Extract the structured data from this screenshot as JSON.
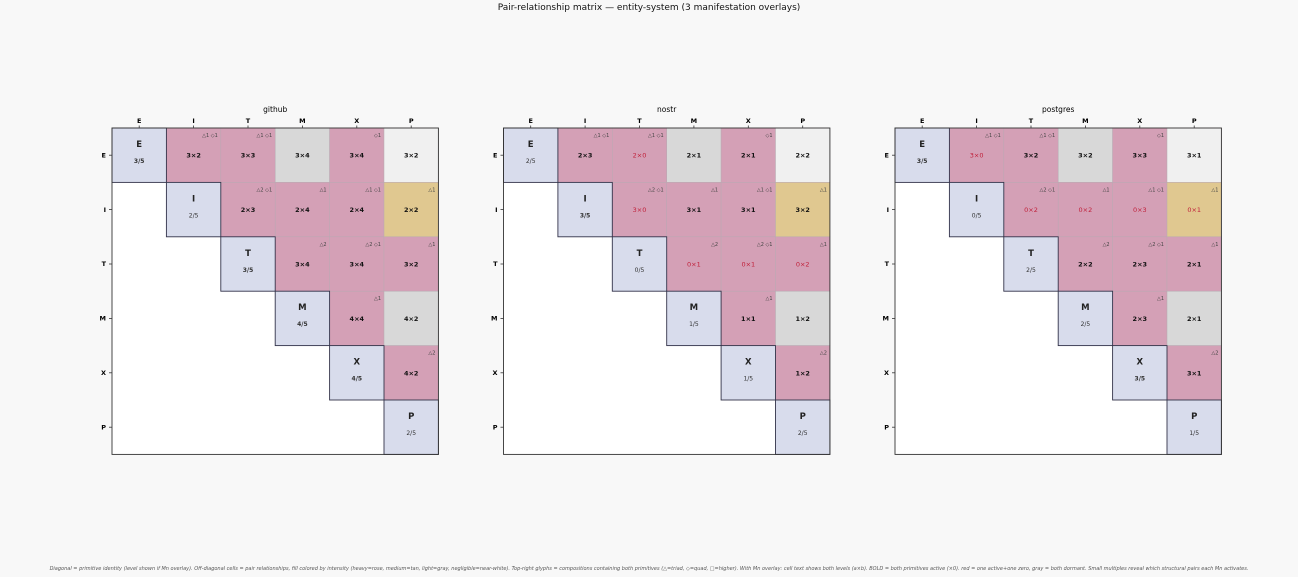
{
  "title": "Pair-relationship matrix — entity-system  (3 manifestation overlays)",
  "caption": "Diagonal = primitive identity (level shown if Mn overlay). Off-diagonal cells = pair relationships, fill colored by intensity (heavy=rose, medium=tan, light=gray, negligible=near-white). Top-right glyphs = compositions containing both primitives (△=triad, ◇=quad, □=higher). With Mn overlay: cell text shows both levels (a×b). BOLD = both primitives active (×0). red = one active+one zero, gray = both dormant. Small multiples reveal which structural pairs each Mn activates.",
  "chart_data": {
    "type": "heatmap",
    "primitives": [
      "E",
      "I",
      "T",
      "M",
      "X",
      "P"
    ],
    "intensity_colors": {
      "heavy": "#d4a0b6",
      "medium": "#e0c890",
      "light": "#d8d8d8",
      "negligible": "#f0f0f0",
      "diagonal": "#d8dcec"
    },
    "text_colors": {
      "both_active": "#111111",
      "one_zero": "#c0203a",
      "dormant": "#555555"
    },
    "glyphs": {
      "E-I": "△1 ◇1",
      "E-T": "△1 ◇1",
      "E-X": "◇1",
      "I-T": "△2 ◇1",
      "I-M": "△1",
      "I-X": "△1 ◇1",
      "I-P": "△1",
      "T-M": "△2",
      "T-X": "△2 ◇1",
      "T-P": "△1",
      "M-X": "△1",
      "X-P": "△2"
    },
    "intensity": {
      "E-I": "heavy",
      "E-T": "heavy",
      "E-M": "light",
      "E-X": "heavy",
      "E-P": "negligible",
      "I-T": "heavy",
      "I-M": "heavy",
      "I-X": "heavy",
      "I-P": "medium",
      "T-M": "heavy",
      "T-X": "heavy",
      "T-P": "heavy",
      "M-X": "heavy",
      "M-P": "light",
      "X-P": "heavy"
    },
    "panels": [
      {
        "name": "github",
        "levels": {
          "E": "3/5",
          "I": "2/5",
          "T": "3/5",
          "M": "4/5",
          "X": "4/5",
          "P": "2/5"
        },
        "cells": {
          "E-I": "3×2",
          "E-T": "3×3",
          "E-M": "3×4",
          "E-X": "3×4",
          "E-P": "3×2",
          "I-T": "2×3",
          "I-M": "2×4",
          "I-X": "2×4",
          "I-P": "2×2",
          "T-M": "3×4",
          "T-X": "3×4",
          "T-P": "3×2",
          "M-X": "4×4",
          "M-P": "4×2",
          "X-P": "4×2"
        }
      },
      {
        "name": "nostr",
        "levels": {
          "E": "2/5",
          "I": "3/5",
          "T": "0/5",
          "M": "1/5",
          "X": "1/5",
          "P": "2/5"
        },
        "cells": {
          "E-I": "2×3",
          "E-T": "2×0",
          "E-M": "2×1",
          "E-X": "2×1",
          "E-P": "2×2",
          "I-T": "3×0",
          "I-M": "3×1",
          "I-X": "3×1",
          "I-P": "3×2",
          "T-M": "0×1",
          "T-X": "0×1",
          "T-P": "0×2",
          "M-X": "1×1",
          "M-P": "1×2",
          "X-P": "1×2"
        }
      },
      {
        "name": "postgres",
        "levels": {
          "E": "3/5",
          "I": "0/5",
          "T": "2/5",
          "M": "2/5",
          "X": "3/5",
          "P": "1/5"
        },
        "cells": {
          "E-I": "3×0",
          "E-T": "3×2",
          "E-M": "3×2",
          "E-X": "3×3",
          "E-P": "3×1",
          "I-T": "0×2",
          "I-M": "0×2",
          "I-X": "0×3",
          "I-P": "0×1",
          "T-M": "2×2",
          "T-X": "2×3",
          "T-P": "2×1",
          "M-X": "2×3",
          "M-P": "2×1",
          "X-P": "3×1"
        }
      }
    ]
  }
}
